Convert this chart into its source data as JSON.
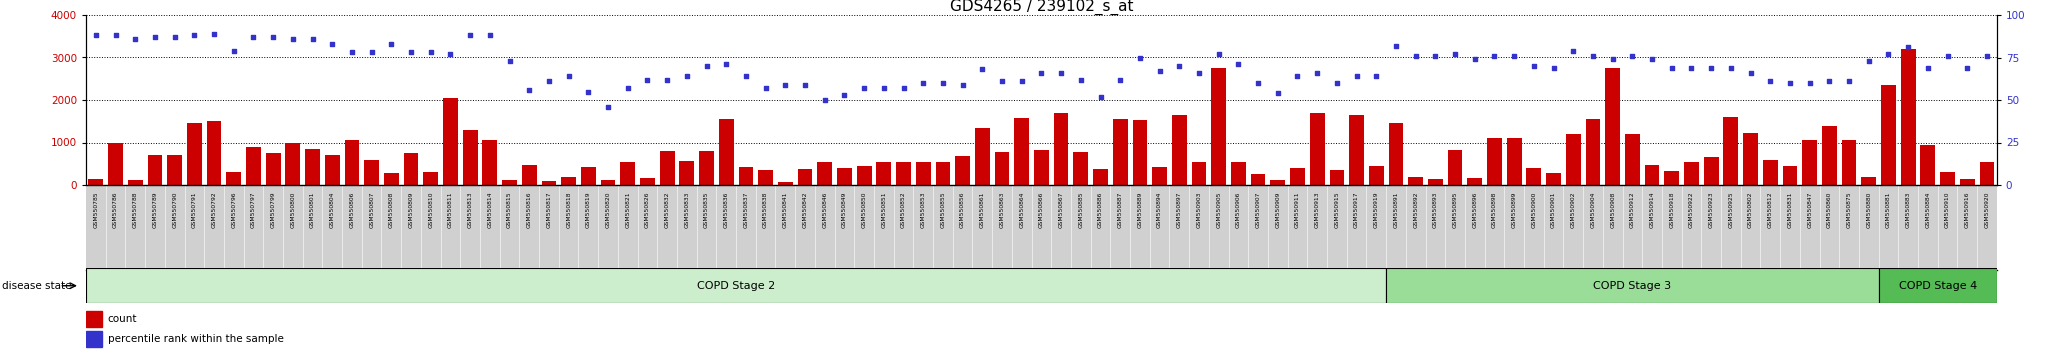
{
  "title": "GDS4265 / 239102_s_at",
  "title_fontsize": 11,
  "ylim_left": [
    0,
    4000
  ],
  "ylim_right": [
    0,
    100
  ],
  "yticks_left": [
    0,
    1000,
    2000,
    3000,
    4000
  ],
  "yticks_right": [
    0,
    25,
    50,
    75,
    100
  ],
  "bar_color": "#cc0000",
  "dot_color": "#3333cc",
  "bg_color": "#ffffff",
  "xtick_bg": "#d0d0d0",
  "stage2_color": "#cceecc",
  "stage3_color": "#99dd99",
  "stage4_color": "#55bb55",
  "disease_state_label": "disease state",
  "legend_count": "count",
  "legend_pct": "percentile rank within the sample",
  "samples": [
    {
      "id": "GSM550785",
      "count": 130,
      "pct": 88,
      "stage": 2
    },
    {
      "id": "GSM550786",
      "count": 1000,
      "pct": 88,
      "stage": 2
    },
    {
      "id": "GSM550788",
      "count": 120,
      "pct": 86,
      "stage": 2
    },
    {
      "id": "GSM550789",
      "count": 700,
      "pct": 87,
      "stage": 2
    },
    {
      "id": "GSM550790",
      "count": 700,
      "pct": 87,
      "stage": 2
    },
    {
      "id": "GSM550791",
      "count": 1450,
      "pct": 88,
      "stage": 2
    },
    {
      "id": "GSM550792",
      "count": 1500,
      "pct": 89,
      "stage": 2
    },
    {
      "id": "GSM550796",
      "count": 300,
      "pct": 79,
      "stage": 2
    },
    {
      "id": "GSM550797",
      "count": 900,
      "pct": 87,
      "stage": 2
    },
    {
      "id": "GSM550799",
      "count": 750,
      "pct": 87,
      "stage": 2
    },
    {
      "id": "GSM550800",
      "count": 1000,
      "pct": 86,
      "stage": 2
    },
    {
      "id": "GSM550801",
      "count": 850,
      "pct": 86,
      "stage": 2
    },
    {
      "id": "GSM550804",
      "count": 700,
      "pct": 83,
      "stage": 2
    },
    {
      "id": "GSM550806",
      "count": 1050,
      "pct": 78,
      "stage": 2
    },
    {
      "id": "GSM550807",
      "count": 600,
      "pct": 78,
      "stage": 2
    },
    {
      "id": "GSM550808",
      "count": 280,
      "pct": 83,
      "stage": 2
    },
    {
      "id": "GSM550809",
      "count": 750,
      "pct": 78,
      "stage": 2
    },
    {
      "id": "GSM550810",
      "count": 300,
      "pct": 78,
      "stage": 2
    },
    {
      "id": "GSM550811",
      "count": 2050,
      "pct": 77,
      "stage": 2
    },
    {
      "id": "GSM550813",
      "count": 1300,
      "pct": 88,
      "stage": 2
    },
    {
      "id": "GSM550814",
      "count": 1050,
      "pct": 88,
      "stage": 2
    },
    {
      "id": "GSM550815",
      "count": 120,
      "pct": 73,
      "stage": 2
    },
    {
      "id": "GSM550816",
      "count": 470,
      "pct": 56,
      "stage": 2
    },
    {
      "id": "GSM550817",
      "count": 100,
      "pct": 61,
      "stage": 2
    },
    {
      "id": "GSM550818",
      "count": 200,
      "pct": 64,
      "stage": 2
    },
    {
      "id": "GSM550819",
      "count": 430,
      "pct": 55,
      "stage": 2
    },
    {
      "id": "GSM550820",
      "count": 120,
      "pct": 46,
      "stage": 2
    },
    {
      "id": "GSM550821",
      "count": 550,
      "pct": 57,
      "stage": 2
    },
    {
      "id": "GSM550826",
      "count": 170,
      "pct": 62,
      "stage": 2
    },
    {
      "id": "GSM550832",
      "count": 800,
      "pct": 62,
      "stage": 2
    },
    {
      "id": "GSM550833",
      "count": 560,
      "pct": 64,
      "stage": 2
    },
    {
      "id": "GSM550835",
      "count": 800,
      "pct": 70,
      "stage": 2
    },
    {
      "id": "GSM550836",
      "count": 1550,
      "pct": 71,
      "stage": 2
    },
    {
      "id": "GSM550837",
      "count": 430,
      "pct": 64,
      "stage": 2
    },
    {
      "id": "GSM550838",
      "count": 350,
      "pct": 57,
      "stage": 2
    },
    {
      "id": "GSM550841",
      "count": 80,
      "pct": 59,
      "stage": 2
    },
    {
      "id": "GSM550842",
      "count": 370,
      "pct": 59,
      "stage": 2
    },
    {
      "id": "GSM550846",
      "count": 530,
      "pct": 50,
      "stage": 2
    },
    {
      "id": "GSM550849",
      "count": 400,
      "pct": 53,
      "stage": 2
    },
    {
      "id": "GSM550850",
      "count": 450,
      "pct": 57,
      "stage": 2
    },
    {
      "id": "GSM550851",
      "count": 530,
      "pct": 57,
      "stage": 2
    },
    {
      "id": "GSM550852",
      "count": 540,
      "pct": 57,
      "stage": 2
    },
    {
      "id": "GSM550853",
      "count": 530,
      "pct": 60,
      "stage": 2
    },
    {
      "id": "GSM550855",
      "count": 530,
      "pct": 60,
      "stage": 2
    },
    {
      "id": "GSM550856",
      "count": 680,
      "pct": 59,
      "stage": 2
    },
    {
      "id": "GSM550861",
      "count": 1350,
      "pct": 68,
      "stage": 2
    },
    {
      "id": "GSM550863",
      "count": 780,
      "pct": 61,
      "stage": 2
    },
    {
      "id": "GSM550864",
      "count": 1580,
      "pct": 61,
      "stage": 2
    },
    {
      "id": "GSM550866",
      "count": 820,
      "pct": 66,
      "stage": 2
    },
    {
      "id": "GSM550867",
      "count": 1700,
      "pct": 66,
      "stage": 2
    },
    {
      "id": "GSM550885",
      "count": 780,
      "pct": 62,
      "stage": 2
    },
    {
      "id": "GSM550886",
      "count": 380,
      "pct": 52,
      "stage": 2
    },
    {
      "id": "GSM550887",
      "count": 1550,
      "pct": 62,
      "stage": 2
    },
    {
      "id": "GSM550889",
      "count": 1530,
      "pct": 75,
      "stage": 2
    },
    {
      "id": "GSM550894",
      "count": 430,
      "pct": 67,
      "stage": 2
    },
    {
      "id": "GSM550897",
      "count": 1650,
      "pct": 70,
      "stage": 2
    },
    {
      "id": "GSM550903",
      "count": 550,
      "pct": 66,
      "stage": 2
    },
    {
      "id": "GSM550905",
      "count": 2750,
      "pct": 77,
      "stage": 2
    },
    {
      "id": "GSM550906",
      "count": 550,
      "pct": 71,
      "stage": 2
    },
    {
      "id": "GSM550907",
      "count": 250,
      "pct": 60,
      "stage": 2
    },
    {
      "id": "GSM550909",
      "count": 120,
      "pct": 54,
      "stage": 2
    },
    {
      "id": "GSM550911",
      "count": 400,
      "pct": 64,
      "stage": 2
    },
    {
      "id": "GSM550913",
      "count": 1700,
      "pct": 66,
      "stage": 2
    },
    {
      "id": "GSM550915",
      "count": 350,
      "pct": 60,
      "stage": 2
    },
    {
      "id": "GSM550917",
      "count": 1650,
      "pct": 64,
      "stage": 2
    },
    {
      "id": "GSM550919",
      "count": 450,
      "pct": 64,
      "stage": 2
    },
    {
      "id": "GSM550891",
      "count": 1450,
      "pct": 82,
      "stage": 3
    },
    {
      "id": "GSM550892",
      "count": 200,
      "pct": 76,
      "stage": 3
    },
    {
      "id": "GSM550893",
      "count": 150,
      "pct": 76,
      "stage": 3
    },
    {
      "id": "GSM550895",
      "count": 820,
      "pct": 77,
      "stage": 3
    },
    {
      "id": "GSM550896",
      "count": 170,
      "pct": 74,
      "stage": 3
    },
    {
      "id": "GSM550898",
      "count": 1100,
      "pct": 76,
      "stage": 3
    },
    {
      "id": "GSM550899",
      "count": 1100,
      "pct": 76,
      "stage": 3
    },
    {
      "id": "GSM550900",
      "count": 400,
      "pct": 70,
      "stage": 3
    },
    {
      "id": "GSM550901",
      "count": 280,
      "pct": 69,
      "stage": 3
    },
    {
      "id": "GSM550902",
      "count": 1200,
      "pct": 79,
      "stage": 3
    },
    {
      "id": "GSM550904",
      "count": 1550,
      "pct": 76,
      "stage": 3
    },
    {
      "id": "GSM550908",
      "count": 2750,
      "pct": 74,
      "stage": 3
    },
    {
      "id": "GSM550912",
      "count": 1200,
      "pct": 76,
      "stage": 3
    },
    {
      "id": "GSM550914",
      "count": 480,
      "pct": 74,
      "stage": 3
    },
    {
      "id": "GSM550918",
      "count": 320,
      "pct": 69,
      "stage": 3
    },
    {
      "id": "GSM550922",
      "count": 550,
      "pct": 69,
      "stage": 3
    },
    {
      "id": "GSM550923",
      "count": 650,
      "pct": 69,
      "stage": 3
    },
    {
      "id": "GSM550925",
      "count": 1600,
      "pct": 69,
      "stage": 3
    },
    {
      "id": "GSM550802",
      "count": 1220,
      "pct": 66,
      "stage": 3
    },
    {
      "id": "GSM550812",
      "count": 600,
      "pct": 61,
      "stage": 3
    },
    {
      "id": "GSM550831",
      "count": 450,
      "pct": 60,
      "stage": 3
    },
    {
      "id": "GSM550847",
      "count": 1050,
      "pct": 60,
      "stage": 3
    },
    {
      "id": "GSM550860",
      "count": 1400,
      "pct": 61,
      "stage": 3
    },
    {
      "id": "GSM550875",
      "count": 1050,
      "pct": 61,
      "stage": 3
    },
    {
      "id": "GSM550880",
      "count": 180,
      "pct": 73,
      "stage": 3
    },
    {
      "id": "GSM550881",
      "count": 2350,
      "pct": 77,
      "stage": 4
    },
    {
      "id": "GSM550883",
      "count": 3200,
      "pct": 81,
      "stage": 4
    },
    {
      "id": "GSM550884",
      "count": 950,
      "pct": 69,
      "stage": 4
    },
    {
      "id": "GSM550910",
      "count": 300,
      "pct": 76,
      "stage": 4
    },
    {
      "id": "GSM550916",
      "count": 150,
      "pct": 69,
      "stage": 4
    },
    {
      "id": "GSM550920",
      "count": 550,
      "pct": 76,
      "stage": 4
    }
  ]
}
